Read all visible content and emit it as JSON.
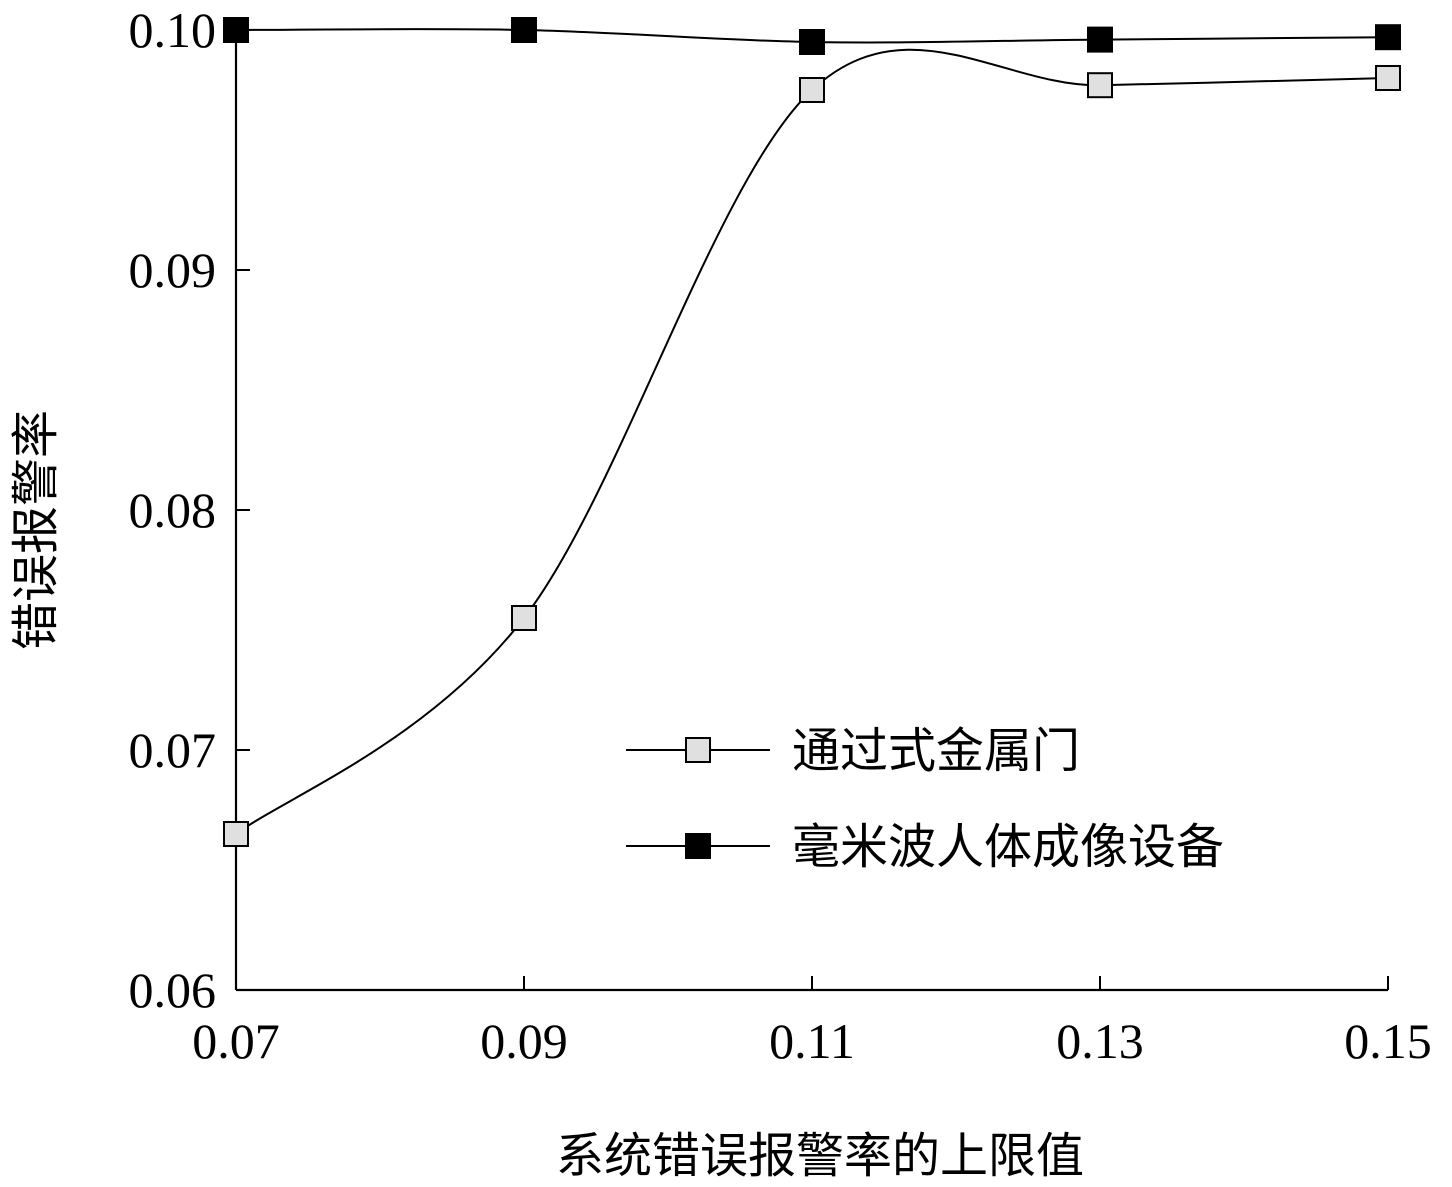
{
  "chart_data": {
    "type": "line",
    "title": "",
    "xlabel": "系统错误报警率的上限值",
    "ylabel": "错误报警率",
    "x": [
      0.07,
      0.09,
      0.11,
      0.13,
      0.15
    ],
    "x_tick_labels": [
      "0.07",
      "0.09",
      "0.11",
      "0.13",
      "0.15"
    ],
    "y_tick_values": [
      0.06,
      0.07,
      0.08,
      0.09,
      0.1
    ],
    "y_tick_labels": [
      "0.06",
      "0.07",
      "0.08",
      "0.09",
      "0.10"
    ],
    "xlim": [
      0.07,
      0.15
    ],
    "ylim": [
      0.06,
      0.1
    ],
    "grid": false,
    "smooth": true,
    "legend_position": "center-right",
    "series": [
      {
        "name": "通过式金属门",
        "marker": "square",
        "marker_fill": "#e0e0e0",
        "values": [
          0.0665,
          0.0755,
          0.0975,
          0.0977,
          0.098
        ]
      },
      {
        "name": "毫米波人体成像设备",
        "marker": "square",
        "marker_fill": "#000000",
        "values": [
          0.1,
          0.1,
          0.0995,
          0.0996,
          0.0997
        ]
      }
    ]
  }
}
